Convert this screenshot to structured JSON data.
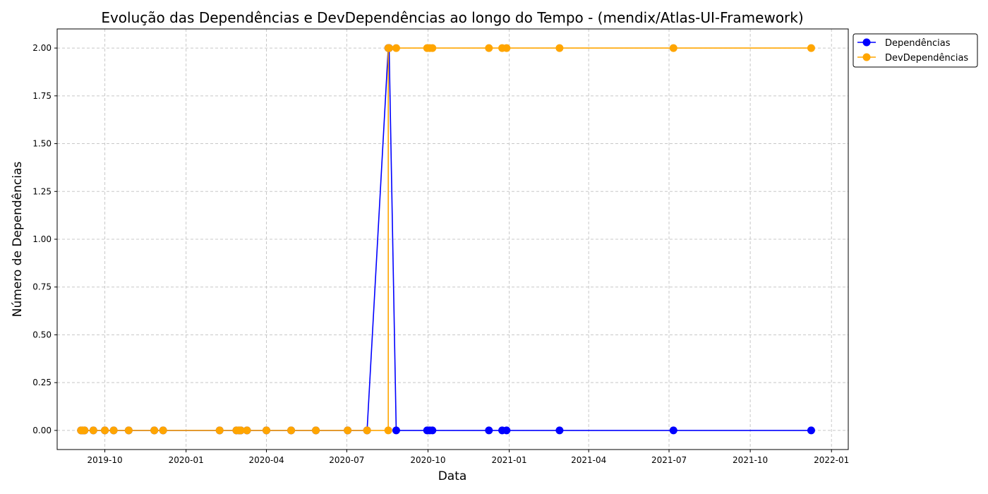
{
  "chart_data": {
    "type": "line",
    "title": "Evolução das Dependências e DevDependências ao longo do Tempo - (mendix/Atlas-UI-Framework)",
    "xlabel": "Data",
    "ylabel": "Número de Dependências",
    "x_axis_type": "date",
    "xlim": [
      "2019-08-08",
      "2022-01-20"
    ],
    "ylim": [
      -0.1,
      2.1
    ],
    "x_ticks": [
      {
        "date": "2019-10-01",
        "label": "2019-10"
      },
      {
        "date": "2020-01-01",
        "label": "2020-01"
      },
      {
        "date": "2020-04-01",
        "label": "2020-04"
      },
      {
        "date": "2020-07-01",
        "label": "2020-07"
      },
      {
        "date": "2020-10-01",
        "label": "2020-10"
      },
      {
        "date": "2021-01-01",
        "label": "2021-01"
      },
      {
        "date": "2021-04-01",
        "label": "2021-04"
      },
      {
        "date": "2021-07-01",
        "label": "2021-07"
      },
      {
        "date": "2021-10-01",
        "label": "2021-10"
      },
      {
        "date": "2022-01-01",
        "label": "2022-01"
      }
    ],
    "y_ticks": [
      {
        "value": 0.0,
        "label": "0.00"
      },
      {
        "value": 0.25,
        "label": "0.25"
      },
      {
        "value": 0.5,
        "label": "0.50"
      },
      {
        "value": 0.75,
        "label": "0.75"
      },
      {
        "value": 1.0,
        "label": "1.00"
      },
      {
        "value": 1.25,
        "label": "1.25"
      },
      {
        "value": 1.5,
        "label": "1.50"
      },
      {
        "value": 1.75,
        "label": "1.75"
      },
      {
        "value": 2.0,
        "label": "2.00"
      }
    ],
    "grid": true,
    "legend_position": "outside-top-right",
    "series": [
      {
        "name": "Dependências",
        "color": "#0000ff",
        "points": [
          {
            "x": "2019-09-04",
            "y": 0
          },
          {
            "x": "2019-09-06",
            "y": 0
          },
          {
            "x": "2019-09-08",
            "y": 0
          },
          {
            "x": "2019-09-18",
            "y": 0
          },
          {
            "x": "2019-10-01",
            "y": 0
          },
          {
            "x": "2019-10-11",
            "y": 0
          },
          {
            "x": "2019-10-28",
            "y": 0
          },
          {
            "x": "2019-11-26",
            "y": 0
          },
          {
            "x": "2019-12-06",
            "y": 0
          },
          {
            "x": "2020-02-08",
            "y": 0
          },
          {
            "x": "2020-02-27",
            "y": 0
          },
          {
            "x": "2020-03-01",
            "y": 0
          },
          {
            "x": "2020-03-03",
            "y": 0
          },
          {
            "x": "2020-03-10",
            "y": 0
          },
          {
            "x": "2020-04-01",
            "y": 0
          },
          {
            "x": "2020-04-29",
            "y": 0
          },
          {
            "x": "2020-05-27",
            "y": 0
          },
          {
            "x": "2020-07-02",
            "y": 0
          },
          {
            "x": "2020-07-24",
            "y": 0
          },
          {
            "x": "2020-08-17",
            "y": 2
          },
          {
            "x": "2020-08-18",
            "y": 2
          },
          {
            "x": "2020-08-26",
            "y": 0
          },
          {
            "x": "2020-09-30",
            "y": 0
          },
          {
            "x": "2020-10-03",
            "y": 0
          },
          {
            "x": "2020-10-06",
            "y": 0
          },
          {
            "x": "2020-12-09",
            "y": 0
          },
          {
            "x": "2020-12-24",
            "y": 0
          },
          {
            "x": "2020-12-29",
            "y": 0
          },
          {
            "x": "2021-02-27",
            "y": 0
          },
          {
            "x": "2021-07-06",
            "y": 0
          },
          {
            "x": "2021-12-09",
            "y": 0
          }
        ]
      },
      {
        "name": "DevDependências",
        "color": "#ffa500",
        "points": [
          {
            "x": "2019-09-04",
            "y": 0
          },
          {
            "x": "2019-09-06",
            "y": 0
          },
          {
            "x": "2019-09-08",
            "y": 0
          },
          {
            "x": "2019-09-18",
            "y": 0
          },
          {
            "x": "2019-10-01",
            "y": 0
          },
          {
            "x": "2019-10-11",
            "y": 0
          },
          {
            "x": "2019-10-28",
            "y": 0
          },
          {
            "x": "2019-11-26",
            "y": 0
          },
          {
            "x": "2019-12-06",
            "y": 0
          },
          {
            "x": "2020-02-08",
            "y": 0
          },
          {
            "x": "2020-02-27",
            "y": 0
          },
          {
            "x": "2020-03-01",
            "y": 0
          },
          {
            "x": "2020-03-03",
            "y": 0
          },
          {
            "x": "2020-03-10",
            "y": 0
          },
          {
            "x": "2020-04-01",
            "y": 0
          },
          {
            "x": "2020-04-29",
            "y": 0
          },
          {
            "x": "2020-05-27",
            "y": 0
          },
          {
            "x": "2020-07-02",
            "y": 0
          },
          {
            "x": "2020-07-24",
            "y": 0
          },
          {
            "x": "2020-08-17",
            "y": 0
          },
          {
            "x": "2020-08-17",
            "y": 2
          },
          {
            "x": "2020-08-18",
            "y": 2
          },
          {
            "x": "2020-08-26",
            "y": 2
          },
          {
            "x": "2020-09-30",
            "y": 2
          },
          {
            "x": "2020-10-03",
            "y": 2
          },
          {
            "x": "2020-10-06",
            "y": 2
          },
          {
            "x": "2020-12-09",
            "y": 2
          },
          {
            "x": "2020-12-24",
            "y": 2
          },
          {
            "x": "2020-12-29",
            "y": 2
          },
          {
            "x": "2021-02-27",
            "y": 2
          },
          {
            "x": "2021-07-06",
            "y": 2
          },
          {
            "x": "2021-12-09",
            "y": 2
          }
        ]
      }
    ]
  }
}
